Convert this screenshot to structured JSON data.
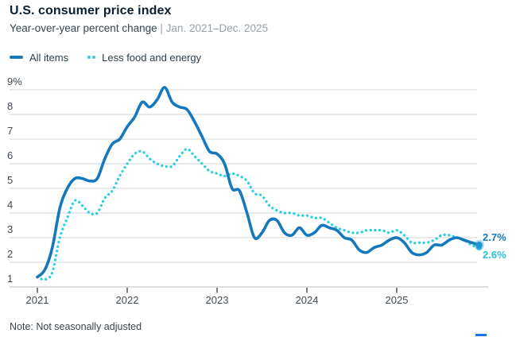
{
  "header": {
    "title": "U.S. consumer price index",
    "subtitle": "Year-over-year percent change",
    "subtitle_separator": "|",
    "subtitle_range": "Jan. 2021–Dec. 2025"
  },
  "legend": {
    "items": [
      {
        "label": "All items",
        "color": "#1478bd",
        "style": "solid"
      },
      {
        "label": "Less food and energy",
        "color": "#29cfe3",
        "style": "dotted"
      }
    ]
  },
  "chart_data": {
    "type": "line",
    "title": "U.S. consumer price index",
    "ylabel": "percent",
    "x_unit": "month",
    "x_start": "Jan 2021",
    "x_end": "Dec 2025",
    "x_tick_labels": [
      "2021",
      "2022",
      "2023",
      "2024",
      "2025"
    ],
    "y_tick_labels": [
      "9%",
      "8",
      "7",
      "6",
      "5",
      "4",
      "3",
      "2",
      "1"
    ],
    "y_ticks": [
      9,
      8,
      7,
      6,
      5,
      4,
      3,
      2,
      1
    ],
    "ylim": [
      1,
      9
    ],
    "grid": "horizontal",
    "series": [
      {
        "name": "All items",
        "color": "#1478bd",
        "line_style": "solid",
        "values": [
          1.4,
          1.7,
          2.6,
          4.2,
          5.0,
          5.4,
          5.4,
          5.3,
          5.4,
          6.2,
          6.8,
          7.0,
          7.5,
          7.9,
          8.5,
          8.3,
          8.6,
          9.1,
          8.5,
          8.3,
          8.2,
          7.7,
          7.1,
          6.5,
          6.4,
          6.0,
          5.0,
          4.9,
          4.0,
          3.0,
          3.2,
          3.7,
          3.7,
          3.2,
          3.1,
          3.4,
          3.1,
          3.2,
          3.5,
          3.4,
          3.3,
          3.0,
          2.9,
          2.5,
          2.4,
          2.6,
          2.7,
          2.9,
          3.0,
          2.8,
          2.4,
          2.3,
          2.4,
          2.7,
          2.7,
          2.9,
          3.0,
          2.9,
          2.8,
          2.7
        ]
      },
      {
        "name": "Less food and energy",
        "color": "#29cfe3",
        "line_style": "dotted",
        "values": [
          1.4,
          1.3,
          1.6,
          3.0,
          3.8,
          4.5,
          4.3,
          4.0,
          4.0,
          4.6,
          4.9,
          5.5,
          6.0,
          6.4,
          6.5,
          6.2,
          6.0,
          5.9,
          5.9,
          6.3,
          6.6,
          6.3,
          6.0,
          5.7,
          5.6,
          5.5,
          5.6,
          5.5,
          5.3,
          4.8,
          4.7,
          4.3,
          4.1,
          4.0,
          4.0,
          3.9,
          3.9,
          3.8,
          3.8,
          3.6,
          3.4,
          3.3,
          3.2,
          3.2,
          3.3,
          3.3,
          3.3,
          3.2,
          3.3,
          3.1,
          2.8,
          2.8,
          2.8,
          2.9,
          3.1,
          3.1,
          3.0,
          2.9,
          2.7,
          2.6
        ]
      }
    ],
    "end_labels": [
      {
        "text": "2.7%",
        "color": "#1478bd"
      },
      {
        "text": "2.6%",
        "color": "#25c4dc"
      }
    ],
    "end_marker": {
      "series": "All items",
      "value": 2.7
    }
  },
  "note": "Note: Not seasonally adjusted",
  "colors": {
    "grid": "#dadcde",
    "axis": "#c6c9cb",
    "tick_mark": "#444b52",
    "axis_label": "#414b54",
    "end_dot": "#2196d3",
    "brand_bar": "#1a73e8"
  }
}
